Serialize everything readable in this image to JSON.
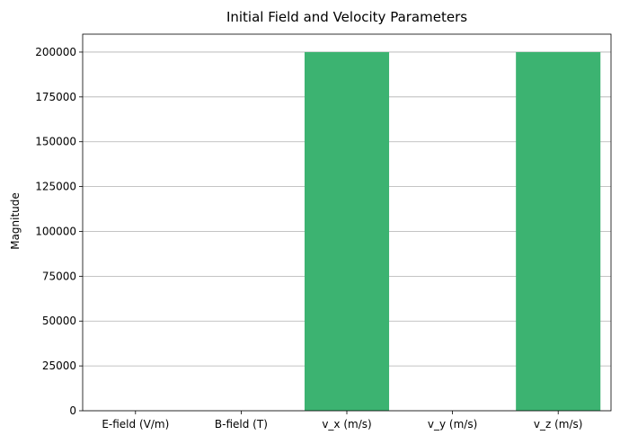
{
  "chart_data": {
    "type": "bar",
    "title": "Initial Field and Velocity Parameters",
    "xlabel": "",
    "ylabel": "Magnitude",
    "categories": [
      "E-field (V/m)",
      "B-field (T)",
      "v_x (m/s)",
      "v_y (m/s)",
      "v_z (m/s)"
    ],
    "values": [
      0,
      0,
      200000,
      0,
      200000
    ],
    "ylim": [
      0,
      210000
    ],
    "yticks": [
      0,
      25000,
      50000,
      75000,
      100000,
      125000,
      150000,
      175000,
      200000
    ],
    "bar_color": "#3cb371",
    "grid": "y-axis only",
    "legend": "none"
  }
}
